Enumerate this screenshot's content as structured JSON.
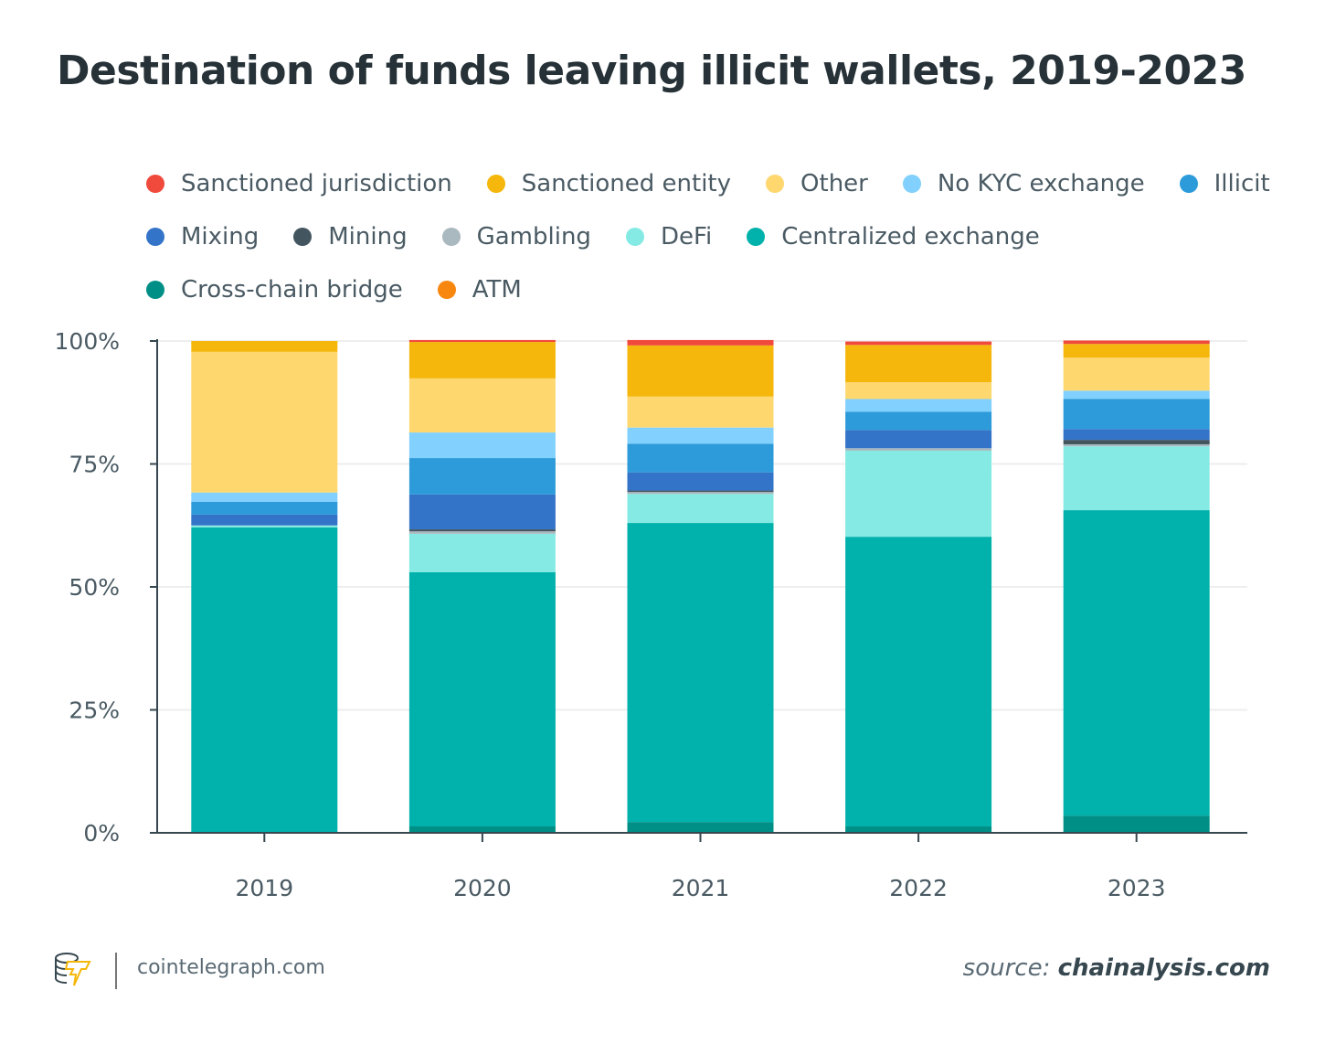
{
  "chart_data": {
    "type": "bar",
    "stacked": true,
    "title": "Destination of funds leaving illicit wallets, 2019-2023",
    "xlabel": "",
    "ylabel": "",
    "ylim": [
      0,
      100
    ],
    "yticks": [
      "0%",
      "25%",
      "50%",
      "75%",
      "100%"
    ],
    "ytick_values": [
      0,
      25,
      50,
      75,
      100
    ],
    "grid": true,
    "legend_position": "top",
    "categories": [
      "2019",
      "2020",
      "2021",
      "2022",
      "2023"
    ],
    "series": [
      {
        "name": "Cross-chain bridge",
        "color": "#008f86",
        "values": [
          0,
          1.3,
          2.2,
          1.3,
          3.5
        ]
      },
      {
        "name": "Centralized exchange",
        "color": "#00b2ab",
        "values": [
          62.1,
          51.7,
          60.8,
          58.9,
          62.1
        ]
      },
      {
        "name": "DeFi",
        "color": "#85eae3",
        "values": [
          0.4,
          7.8,
          5.9,
          17.5,
          13.0
        ]
      },
      {
        "name": "Gambling",
        "color": "#aab8bf",
        "values": [
          0,
          0.5,
          0.4,
          0.5,
          0.4
        ]
      },
      {
        "name": "Mining",
        "color": "#43555f",
        "values": [
          0,
          0.4,
          0.3,
          0,
          0.9
        ]
      },
      {
        "name": "Mixing",
        "color": "#3474c8",
        "values": [
          2.2,
          7.1,
          3.7,
          3.7,
          2.2
        ]
      },
      {
        "name": "Illicit",
        "color": "#2d9bd9",
        "values": [
          2.6,
          7.4,
          5.8,
          3.7,
          6.1
        ]
      },
      {
        "name": "No KYC exchange",
        "color": "#82d0fd",
        "values": [
          1.9,
          5.2,
          3.3,
          2.6,
          1.7
        ]
      },
      {
        "name": "Other",
        "color": "#fed76f",
        "values": [
          28.6,
          11.0,
          6.3,
          3.4,
          6.7
        ]
      },
      {
        "name": "Sanctioned entity",
        "color": "#f5b70b",
        "values": [
          2.2,
          7.4,
          10.4,
          7.6,
          2.8
        ]
      },
      {
        "name": "Sanctioned jurisdiction",
        "color": "#f04a3c",
        "values": [
          0,
          0.4,
          1.1,
          0.7,
          0.7
        ]
      },
      {
        "name": "ATM",
        "color": "#f7870f",
        "values": [
          0,
          0,
          0,
          0,
          0
        ]
      }
    ],
    "legend_order": [
      "Sanctioned jurisdiction",
      "Sanctioned entity",
      "Other",
      "No KYC exchange",
      "Illicit",
      "Mixing",
      "Mining",
      "Gambling",
      "DeFi",
      "Centralized exchange",
      "Cross-chain bridge",
      "ATM"
    ]
  },
  "footer": {
    "site": "cointelegraph.com",
    "source_prefix": "source:",
    "source_name": "chainalysis.com"
  }
}
